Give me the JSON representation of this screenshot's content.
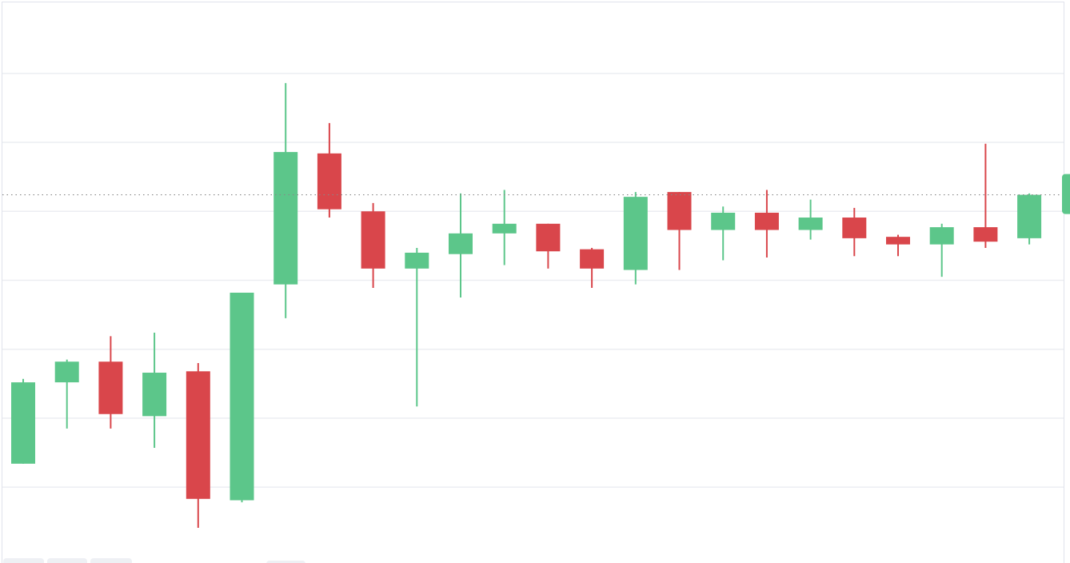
{
  "chart_data": {
    "type": "candlestick",
    "up_color": "#5cc68a",
    "down_color": "#d9464b",
    "open": [
      13.4,
      25.2,
      28.2,
      20.3,
      26.8,
      8.1,
      39.4,
      58.4,
      50.0,
      41.7,
      43.8,
      46.8,
      48.2,
      44.5,
      41.5,
      52.8,
      47.3,
      49.8,
      47.3,
      49.1,
      46.3,
      45.2,
      47.7,
      46.1
    ],
    "high": [
      25.7,
      28.5,
      31.9,
      32.4,
      28.0,
      38.2,
      68.6,
      62.8,
      51.2,
      44.7,
      52.6,
      53.1,
      48.2,
      44.7,
      52.8,
      52.8,
      50.7,
      53.1,
      51.7,
      50.5,
      46.6,
      48.2,
      59.8,
      52.6
    ],
    "low": [
      13.4,
      18.5,
      18.5,
      15.7,
      4.1,
      7.8,
      34.5,
      49.1,
      38.9,
      21.7,
      37.5,
      42.2,
      41.7,
      38.9,
      39.4,
      41.5,
      42.9,
      43.3,
      45.9,
      43.5,
      43.5,
      40.5,
      44.7,
      45.2
    ],
    "close": [
      25.2,
      28.2,
      20.6,
      26.6,
      8.3,
      38.2,
      58.6,
      50.3,
      41.7,
      44.0,
      46.8,
      48.2,
      44.2,
      41.7,
      52.1,
      47.3,
      49.8,
      47.3,
      49.1,
      46.1,
      45.2,
      47.7,
      45.6,
      52.4
    ],
    "ylim": [
      -1,
      80.3
    ],
    "gridlines": [
      10,
      20,
      30,
      40,
      50,
      60,
      70
    ],
    "grid": true,
    "last_price_line": true
  }
}
